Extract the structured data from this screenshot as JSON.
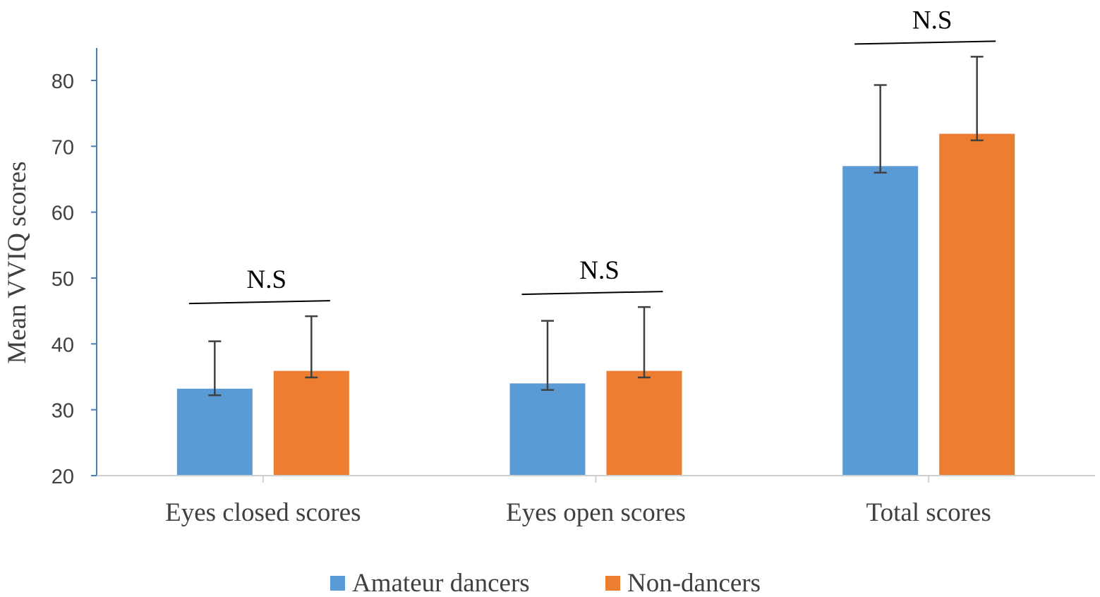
{
  "chart_data": {
    "type": "bar",
    "title": "",
    "xlabel": "",
    "ylabel": "Mean VVIQ scores",
    "ylim": [
      20,
      80
    ],
    "yticks": [
      20,
      30,
      40,
      50,
      60,
      70,
      80
    ],
    "categories": [
      "Eyes closed scores",
      "Eyes open scores",
      "Total scores"
    ],
    "series": [
      {
        "name": "Amateur dancers",
        "color": "#5B9BD5",
        "values": [
          33.2,
          34.0,
          67.0
        ],
        "error_upper": [
          7.2,
          9.5,
          12.3
        ]
      },
      {
        "name": "Non-dancers",
        "color": "#ED7D31",
        "values": [
          35.9,
          35.9,
          71.9
        ],
        "error_upper": [
          8.3,
          9.7,
          11.7
        ]
      }
    ],
    "annotations": [
      "N.S",
      "N.S",
      "N.S"
    ],
    "legend_position": "bottom",
    "grid": false
  }
}
